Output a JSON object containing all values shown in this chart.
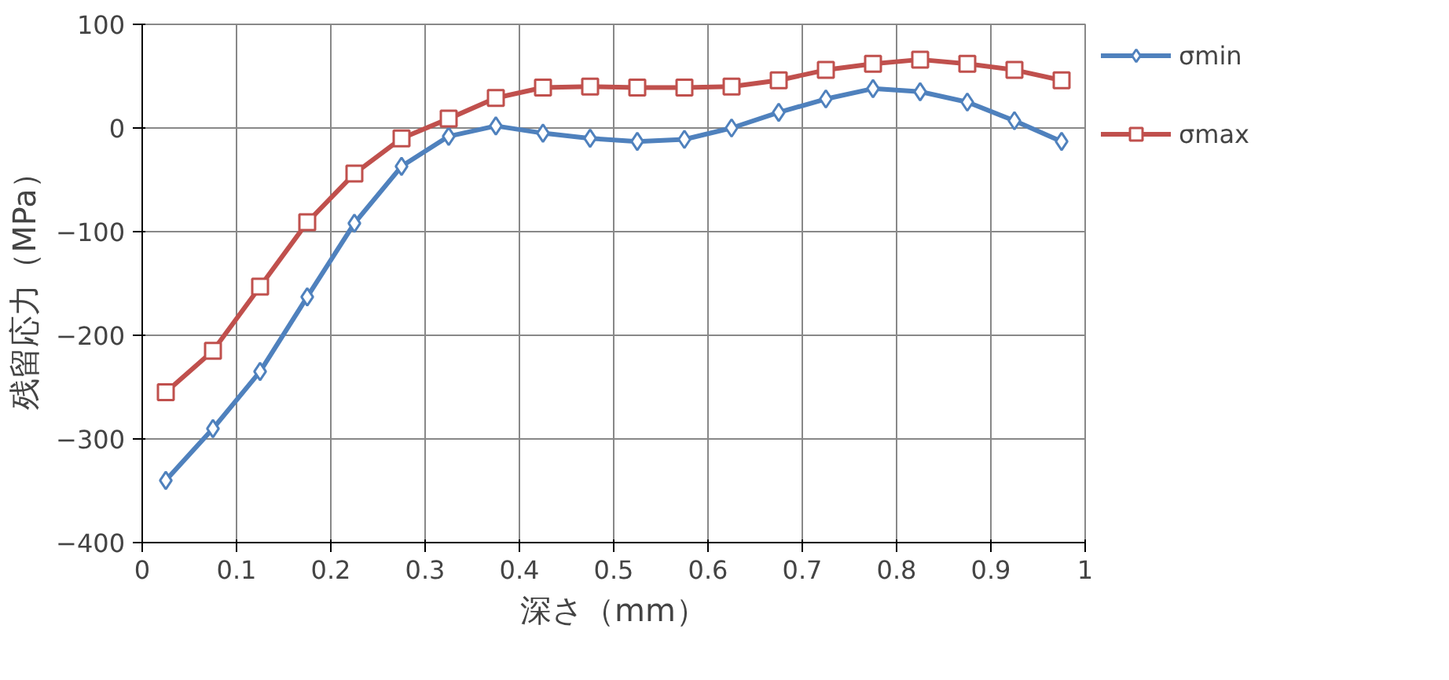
{
  "chart_data": {
    "type": "line",
    "xlabel": "深さ（mm）",
    "ylabel": "残留応力（MPa）",
    "xlim": [
      0,
      1
    ],
    "xticks": [
      0,
      0.1,
      0.2,
      0.3,
      0.4,
      0.5,
      0.6,
      0.7,
      0.8,
      0.9,
      1
    ],
    "ylim": [
      -400,
      100
    ],
    "yticks": [
      -400,
      -300,
      -200,
      -100,
      0,
      100
    ],
    "x": [
      0.025,
      0.075,
      0.125,
      0.175,
      0.225,
      0.275,
      0.325,
      0.375,
      0.425,
      0.475,
      0.525,
      0.575,
      0.625,
      0.675,
      0.725,
      0.775,
      0.825,
      0.875,
      0.925,
      0.975
    ],
    "grid": true,
    "legend": "right",
    "line_style": "solid",
    "series": [
      {
        "name": "σmin",
        "color": "#4f81bd",
        "marker": "diamond",
        "values": [
          -340,
          -290,
          -235,
          -163,
          -92,
          -37,
          -8,
          2,
          -5,
          -10,
          -13,
          -11,
          0,
          15,
          28,
          38,
          35,
          25,
          7,
          -13
        ]
      },
      {
        "name": "σmax",
        "color": "#c0504d",
        "marker": "square",
        "values": [
          -255,
          -215,
          -153,
          -91,
          -44,
          -10,
          9,
          29,
          39,
          40,
          39,
          39,
          40,
          46,
          56,
          62,
          66,
          62,
          56,
          46
        ]
      }
    ]
  }
}
